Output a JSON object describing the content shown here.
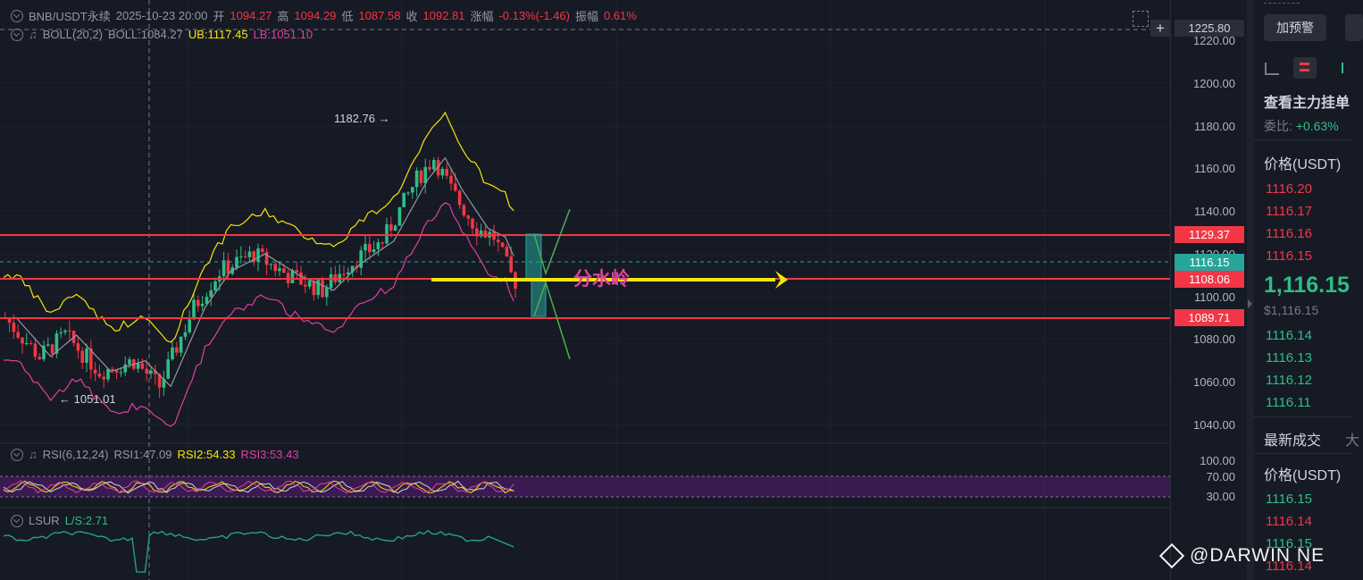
{
  "header": {
    "symbol": "BNB/USDT永续",
    "datetime": "2025-10-23 20:00",
    "open_label": "开",
    "open": "1094.27",
    "high_label": "高",
    "high": "1094.29",
    "low_label": "低",
    "low": "1087.58",
    "close_label": "收",
    "close": "1092.81",
    "change_label": "涨幅",
    "change": "-0.13%(-1.46)",
    "amp_label": "振幅",
    "amp": "0.61%"
  },
  "boll": {
    "name": "BOLL(20,2)",
    "mid": "BOLL:1084.27",
    "ub": "UB:1117.45",
    "lb": "LB:1051.10"
  },
  "rsi": {
    "name": "RSI(6,12,24)",
    "rsi1": "RSI1:47.09",
    "rsi2": "RSI2:54.33",
    "rsi3": "RSI3:53.43",
    "ticks": [
      "100.00",
      "70.00",
      "30.00"
    ]
  },
  "lsur": {
    "name": "LSUR",
    "value": "L/S:2.71"
  },
  "price_axis": {
    "ticks": [
      "1220.00",
      "1200.00",
      "1180.00",
      "1160.00",
      "1140.00",
      "1120.00",
      "1100.00",
      "1080.00",
      "1060.00",
      "1040.00"
    ],
    "crosshair_price": "1225.80",
    "levels": [
      "1129.37",
      "1108.06",
      "1089.71"
    ],
    "current": "1116.15"
  },
  "annotations": {
    "high_label": "1182.76",
    "low_label": "1051.01",
    "watershed": "分水岭"
  },
  "panel": {
    "alert_button": "加预警",
    "main_orders": "查看主力挂单",
    "ratio_label": "委比:",
    "ratio_value": "+0.63%",
    "price_header": "价格(USDT)",
    "asks": [
      "1116.20",
      "1116.17",
      "1116.16",
      "1116.15"
    ],
    "last_price": "1,116.15",
    "last_price_usd": "$1,116.15",
    "bids": [
      "1116.14",
      "1116.13",
      "1116.12",
      "1116.11"
    ],
    "trades_tab": "最新成交",
    "trades_tab2": "大",
    "trades_price_header": "价格(USDT)",
    "trades": [
      "1116.15",
      "1116.14",
      "1116.15",
      "1116.14"
    ]
  },
  "watermark": "@DARWIN NE",
  "colors": {
    "up": "#2ebd85",
    "down": "#f23645",
    "ub": "#f5e50b",
    "lb": "#e040a0",
    "accent": "#f5e50b"
  }
}
